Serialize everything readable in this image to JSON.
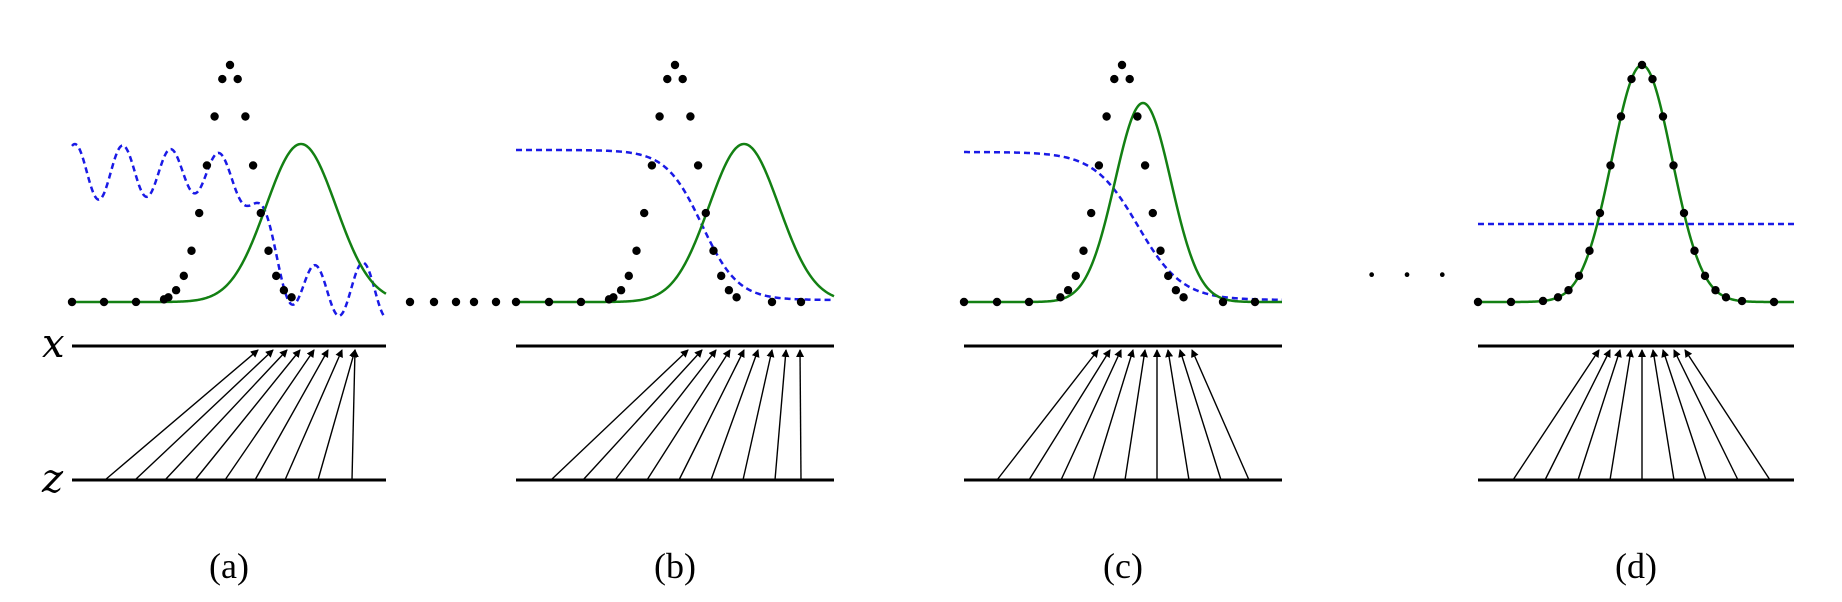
{
  "figure": {
    "x_axis_label": "x",
    "z_axis_label": "z",
    "ellipsis": "· · ·",
    "panels": [
      {
        "id": "a",
        "label": "(a)"
      },
      {
        "id": "b",
        "label": "(b)"
      },
      {
        "id": "c",
        "label": "(c)"
      },
      {
        "id": "d",
        "label": "(d)"
      }
    ]
  },
  "colors": {
    "data_points": "#000000",
    "model_density": "#138013",
    "discriminator": "#1a1ae6",
    "axes": "#000000"
  }
}
